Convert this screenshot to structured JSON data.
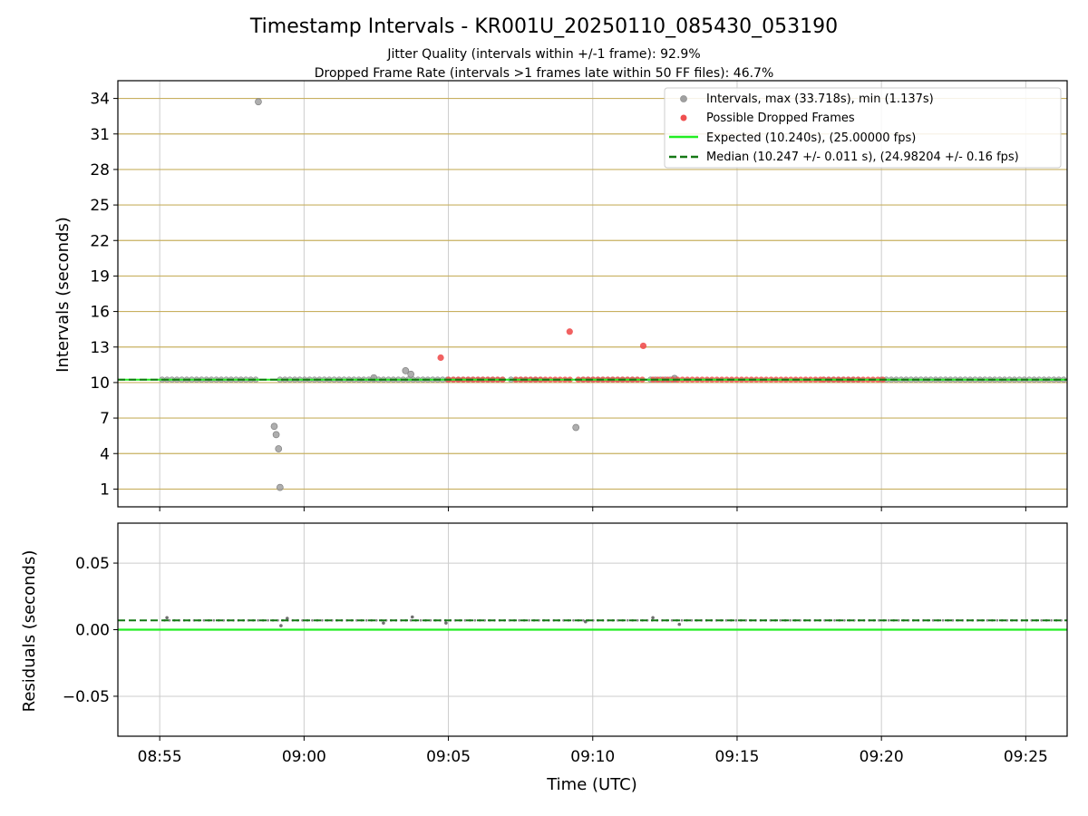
{
  "figure": {
    "title": "Timestamp Intervals - KR001U_20250110_085430_053190",
    "subtitle_1": "Jitter Quality (intervals within +/-1 frame): 92.9%",
    "subtitle_2": "Dropped Frame Rate (intervals >1 frames late within 50 FF files): 46.7%"
  },
  "colors": {
    "intervals": "#a0a0a0",
    "dropped": "#f05050",
    "expected": "#22ee22",
    "median": "#147814",
    "hgrid": "#c8b060",
    "vgrid": "#cccccc",
    "residuals": "#555555"
  },
  "chart_data": [
    {
      "type": "scatter",
      "ylabel": "Intervals (seconds)",
      "xlabel": "",
      "xlim": [
        "08:53:33",
        "09:26:26"
      ],
      "ylim": [
        -0.5,
        35.5
      ],
      "yticks": [
        "1",
        "4",
        "7",
        "10",
        "13",
        "16",
        "19",
        "22",
        "25",
        "28",
        "31",
        "34"
      ],
      "grid": true,
      "legend_position": "upper-right",
      "legend": {
        "intervals": "Intervals, max (33.718s), min (1.137s)",
        "dropped": "Possible Dropped Frames",
        "expected": "Expected (10.240s), (25.00000 fps)",
        "median": "Median (10.247 +/- 0.011 s), (24.98204 +/- 0.16 fps)"
      },
      "expected_line": 10.24,
      "median_line": 10.247,
      "series": [
        {
          "key": "intervals",
          "regular": {
            "y": 10.25,
            "ranges": [
              [
                "08:55:05",
                "08:58:25"
              ],
              [
                "08:59:10",
                "09:05:00"
              ],
              [
                "09:05:00",
                "09:07:00"
              ],
              [
                "09:07:10",
                "09:08:15"
              ],
              [
                "09:09:40",
                "09:11:40"
              ],
              [
                "09:12:00",
                "09:13:00"
              ],
              [
                "09:18:00",
                "09:19:20"
              ],
              [
                "09:20:00",
                "09:26:20"
              ]
            ],
            "step_seconds": 10.24
          },
          "outliers": [
            {
              "x": "08:58:25",
              "y": 33.72
            },
            {
              "x": "08:58:58",
              "y": 6.3
            },
            {
              "x": "08:59:02",
              "y": 5.6
            },
            {
              "x": "08:59:07",
              "y": 4.4
            },
            {
              "x": "08:59:10",
              "y": 1.137
            },
            {
              "x": "09:03:31",
              "y": 11.0
            },
            {
              "x": "09:03:42",
              "y": 10.7
            },
            {
              "x": "09:09:25",
              "y": 6.2
            },
            {
              "x": "09:02:25",
              "y": 10.4
            },
            {
              "x": "09:12:50",
              "y": 10.35
            }
          ]
        },
        {
          "key": "dropped",
          "regular": {
            "y": 10.25,
            "ranges": [
              [
                "09:05:00",
                "09:07:00"
              ],
              [
                "09:07:20",
                "09:09:15"
              ],
              [
                "09:09:30",
                "09:11:45"
              ],
              [
                "09:12:05",
                "09:17:55"
              ],
              [
                "09:18:00",
                "09:20:10"
              ]
            ],
            "step_seconds": 10.24
          },
          "outliers": [
            {
              "x": "09:04:44",
              "y": 12.1
            },
            {
              "x": "09:09:12",
              "y": 14.3
            },
            {
              "x": "09:11:45",
              "y": 13.1
            }
          ]
        }
      ]
    },
    {
      "type": "scatter",
      "ylabel": "Residuals (seconds)",
      "xlabel": "Time (UTC)",
      "xlim": [
        "08:53:33",
        "09:26:26"
      ],
      "ylim": [
        -0.08,
        0.08
      ],
      "yticks": [
        "−0.05",
        "0.00",
        "0.05"
      ],
      "yticks_values": [
        -0.05,
        0.0,
        0.05
      ],
      "xticks": [
        "08:55",
        "09:00",
        "09:05",
        "09:10",
        "09:15",
        "09:20",
        "09:25"
      ],
      "grid": true,
      "expected_line": 0.0,
      "median_line": 0.007,
      "residual_base": 0.007,
      "residual_outliers": [
        {
          "x": "08:55:15",
          "y": 0.009
        },
        {
          "x": "08:59:12",
          "y": 0.003
        },
        {
          "x": "08:59:25",
          "y": 0.0085
        },
        {
          "x": "09:02:45",
          "y": 0.005
        },
        {
          "x": "09:03:45",
          "y": 0.0095
        },
        {
          "x": "09:04:55",
          "y": 0.005
        },
        {
          "x": "09:12:05",
          "y": 0.009
        },
        {
          "x": "09:13:00",
          "y": 0.004
        },
        {
          "x": "09:09:45",
          "y": 0.006
        }
      ]
    }
  ]
}
